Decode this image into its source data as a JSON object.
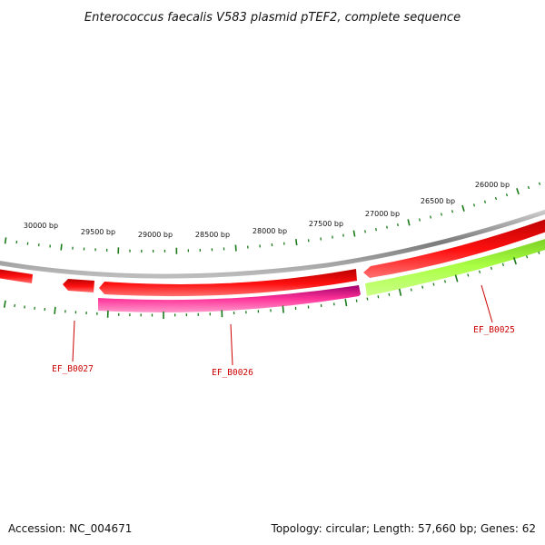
{
  "title": "Enterococcus faecalis V583 plasmid pTEF2, complete sequence",
  "footer": {
    "accession": "Accession: NC_004671",
    "summary": "Topology: circular; Length: 57,660 bp; Genes: 62"
  },
  "ruler": {
    "labels": [
      "30000 bp",
      "29500 bp",
      "29000 bp",
      "28500 bp",
      "28000 bp",
      "27500 bp",
      "27000 bp",
      "26500 bp",
      "26000 bp"
    ]
  },
  "genes": [
    {
      "label": "EF_B0027",
      "color": "#ff0000"
    },
    {
      "label": "EF_B0026",
      "color": "#ff3399"
    },
    {
      "label": "EF_B0025",
      "color": "#99ff33"
    }
  ],
  "colors": {
    "backbone": "#8c8c8c",
    "forward_gene": "#ff0000",
    "tick": "#1a7a1a",
    "label": "#cc0000"
  }
}
